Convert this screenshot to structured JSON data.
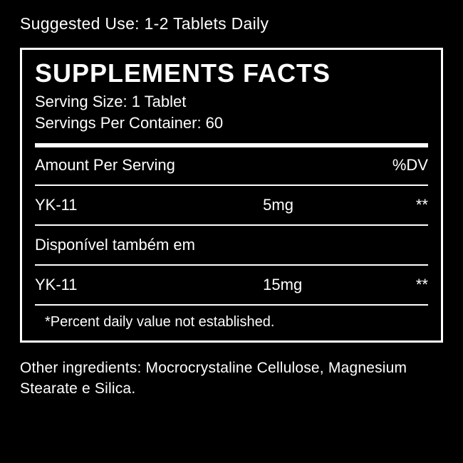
{
  "suggested_use": "Suggested Use: 1-2 Tablets Daily",
  "panel": {
    "title": "SUPPLEMENTS FACTS",
    "serving_size": "Serving Size: 1 Tablet",
    "servings_per_container": "Servings Per Container: 60",
    "header": {
      "amount_per_serving": "Amount Per Serving",
      "dv": "%DV"
    },
    "rows": [
      {
        "name": "YK-11",
        "amount": "5mg",
        "dv": "**"
      }
    ],
    "also_available": "Disponível também em",
    "rows2": [
      {
        "name": "YK-11",
        "amount": "15mg",
        "dv": "**"
      }
    ],
    "footnote": "*Percent daily value not established."
  },
  "other_ingredients": "Other ingredients: Mocrocrystaline Cellulose, Magnesium Stearate e Silica.",
  "colors": {
    "background": "#000000",
    "text": "#ffffff",
    "border": "#ffffff"
  }
}
